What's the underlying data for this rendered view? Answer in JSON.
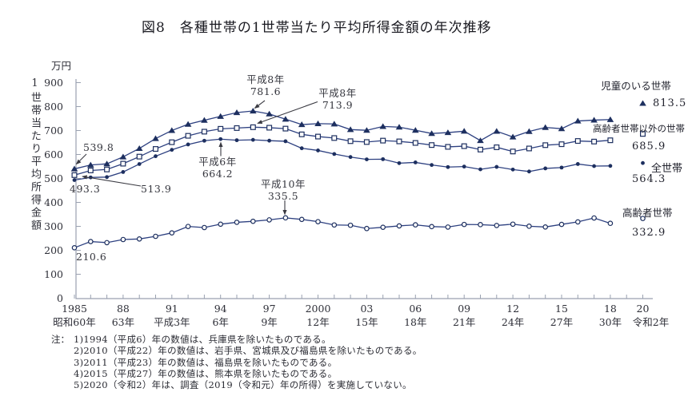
{
  "title": "図8　各種世帯の1世帯当たり平均所得金額の年次推移",
  "y_axis": {
    "unit": "万円",
    "title": "1世帯当たり平均所得金額",
    "tick_values": [
      0,
      100,
      200,
      300,
      400,
      500,
      600,
      700,
      800,
      900
    ],
    "range": [
      0,
      900
    ]
  },
  "x_axis": {
    "tick_years": [
      1985,
      1988,
      1991,
      1994,
      1997,
      2000,
      2003,
      2006,
      2009,
      2012,
      2015,
      2018,
      2020
    ],
    "year_labels": [
      "1985",
      "88",
      "91",
      "94",
      "97",
      "2000",
      "03",
      "06",
      "09",
      "12",
      "15",
      "18",
      "20"
    ],
    "era_labels": [
      "昭和60年",
      "63年",
      "平成3年",
      "6年",
      "9年",
      "12年",
      "15年",
      "18年",
      "21年",
      "24年",
      "27年",
      "30年",
      "令和2年"
    ]
  },
  "chart_data": {
    "type": "line",
    "x": [
      1985,
      1986,
      1987,
      1988,
      1989,
      1990,
      1991,
      1992,
      1993,
      1994,
      1995,
      1996,
      1997,
      1998,
      1999,
      2000,
      2001,
      2002,
      2003,
      2004,
      2005,
      2006,
      2007,
      2008,
      2009,
      2010,
      2011,
      2012,
      2013,
      2014,
      2015,
      2016,
      2017,
      2018,
      2020
    ],
    "series": [
      {
        "name": "児童のいる世帯",
        "marker": "triangle-filled",
        "values": [
          539.8,
          556.2,
          561.0,
          590.1,
          625.2,
          666.5,
          700.3,
          726.1,
          743.0,
          759.0,
          775.1,
          781.6,
          769.3,
          747.6,
          725.0,
          728.8,
          727.6,
          704.0,
          701.0,
          717.1,
          714.3,
          701.2,
          687.7,
          691.4,
          697.3,
          658.1,
          697.0,
          673.2,
          696.3,
          712.9,
          707.8,
          739.8,
          743.6,
          745.9,
          813.5
        ]
      },
      {
        "name": "高齢者世帯以外の世帯",
        "marker": "square-open",
        "values": [
          513.9,
          533.4,
          537.5,
          561.6,
          591.1,
          623.1,
          651.2,
          678.0,
          695.3,
          707.2,
          710.3,
          713.9,
          711.8,
          708.0,
          684.0,
          674.8,
          668.7,
          655.6,
          652.0,
          657.9,
          654.7,
          648.2,
          639.4,
          631.9,
          634.8,
          620.5,
          630.1,
          612.5,
          625.1,
          639.0,
          642.9,
          656.4,
          653.9,
          659.3,
          685.9
        ]
      },
      {
        "name": "全世帯",
        "marker": "circle-filled",
        "values": [
          493.3,
          504.2,
          505.7,
          526.9,
          560.1,
          592.8,
          619.5,
          641.8,
          657.5,
          664.2,
          659.6,
          661.2,
          657.7,
          655.2,
          626.0,
          616.9,
          602.0,
          589.3,
          579.7,
          580.4,
          563.8,
          566.8,
          556.2,
          547.5,
          549.6,
          538.0,
          548.2,
          537.2,
          528.9,
          541.9,
          545.4,
          560.2,
          551.6,
          552.3,
          564.3
        ]
      },
      {
        "name": "高齢者世帯",
        "marker": "circle-open",
        "values": [
          210.6,
          236.5,
          232.0,
          245.0,
          247.3,
          258.3,
          272.7,
          299.5,
          295.0,
          309.0,
          316.9,
          321.0,
          327.0,
          335.5,
          329.0,
          319.5,
          305.8,
          304.6,
          290.9,
          296.1,
          301.9,
          306.3,
          298.9,
          297.0,
          307.9,
          307.2,
          303.6,
          309.1,
          300.5,
          297.3,
          308.1,
          318.6,
          334.9,
          312.6,
          332.9
        ]
      }
    ],
    "ylim": [
      0,
      900
    ],
    "grid": false,
    "legend_position": "right"
  },
  "annotations": {
    "children_start": {
      "text": "539.8"
    },
    "all_start": {
      "text": "493.3"
    },
    "non_elderly_start": {
      "text": "513.9"
    },
    "elderly_start": {
      "text": "210.6"
    },
    "children_peak": {
      "era": "平成8年",
      "value": "781.6"
    },
    "non_elderly_peak": {
      "era": "平成8年",
      "value": "713.9"
    },
    "all_peak": {
      "era": "平成6年",
      "value": "664.2"
    },
    "elderly_peak": {
      "era": "平成10年",
      "value": "335.5"
    }
  },
  "legend": {
    "children": {
      "label": "児童のいる世帯",
      "value": "813.5"
    },
    "non_elderly": {
      "label": "高齢者世帯以外の世帯",
      "value": "685.9"
    },
    "all": {
      "label": "全世帯",
      "value": "564.3"
    },
    "elderly": {
      "label": "高齢者世帯",
      "value": "332.9"
    }
  },
  "notes": {
    "prefix": "注：",
    "items": [
      "1)1994（平成6）年の数値は、兵庫県を除いたものである。",
      "2)2010（平成22）年の数値は、岩手県、宮城県及び福島県を除いたものである。",
      "3)2011（平成23）年の数値は、福島県を除いたものである。",
      "4)2015（平成27）年の数値は、熊本県を除いたものである。",
      "5)2020（令和2）年は、調査（2019（令和元）年の所得）を実施していない。"
    ]
  },
  "colors": {
    "line": "#2d4080",
    "marker": "#1d2f5f",
    "axis": "#9aa1b0",
    "text": "#2e2f38",
    "arrow": "#3a3a42",
    "background": "#ffffff"
  }
}
